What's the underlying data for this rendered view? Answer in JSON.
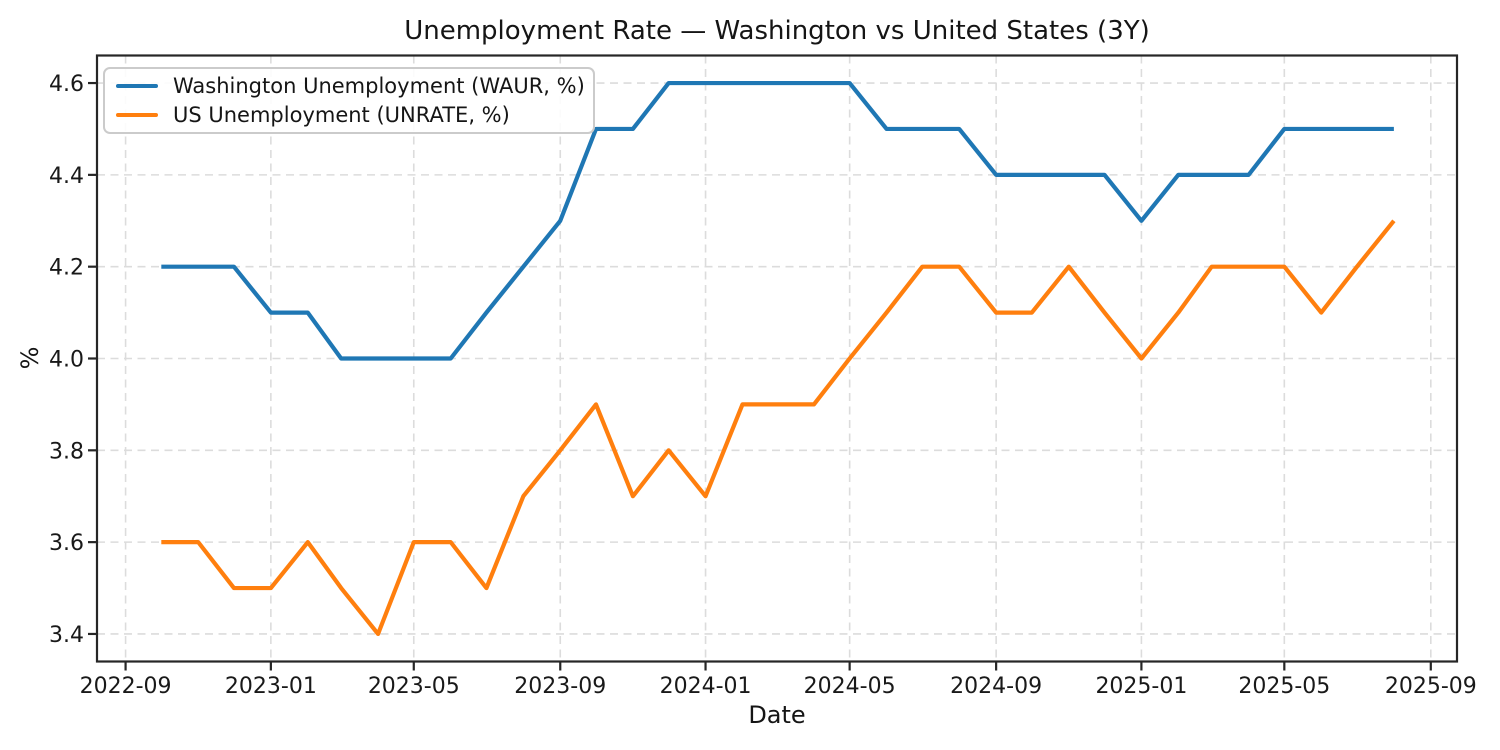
{
  "chart_data": {
    "type": "line",
    "title": "Unemployment Rate — Washington vs United States (3Y)",
    "xlabel": "Date",
    "ylabel": "%",
    "grid": true,
    "legend_position": "upper left",
    "x": [
      "2022-10",
      "2022-11",
      "2022-12",
      "2023-01",
      "2023-02",
      "2023-03",
      "2023-04",
      "2023-05",
      "2023-06",
      "2023-07",
      "2023-08",
      "2023-09",
      "2023-10",
      "2023-11",
      "2023-12",
      "2024-01",
      "2024-02",
      "2024-03",
      "2024-04",
      "2024-05",
      "2024-06",
      "2024-07",
      "2024-08",
      "2024-09",
      "2024-10",
      "2024-11",
      "2024-12",
      "2025-01",
      "2025-02",
      "2025-03",
      "2025-04",
      "2025-05",
      "2025-06",
      "2025-07",
      "2025-08"
    ],
    "series": [
      {
        "name": "Washington Unemployment (WAUR, %)",
        "color": "#1f77b4",
        "values": [
          4.2,
          4.2,
          4.2,
          4.1,
          4.1,
          4.0,
          4.0,
          4.0,
          4.0,
          4.1,
          4.2,
          4.3,
          4.5,
          4.5,
          4.6,
          4.6,
          4.6,
          4.6,
          4.6,
          4.6,
          4.5,
          4.5,
          4.5,
          4.4,
          4.4,
          4.4,
          4.4,
          4.3,
          4.4,
          4.4,
          4.4,
          4.5,
          4.5,
          4.5,
          4.5
        ]
      },
      {
        "name": "US Unemployment (UNRATE, %)",
        "color": "#ff7f0e",
        "values": [
          3.6,
          3.6,
          3.5,
          3.5,
          3.6,
          3.5,
          3.4,
          3.6,
          3.6,
          3.5,
          3.7,
          3.8,
          3.9,
          3.7,
          3.8,
          3.7,
          3.9,
          3.9,
          3.9,
          4.0,
          4.1,
          4.2,
          4.2,
          4.1,
          4.1,
          4.2,
          4.1,
          4.0,
          4.1,
          4.2,
          4.2,
          4.2,
          4.1,
          4.2,
          4.3
        ]
      }
    ],
    "x_tick_labels": [
      "2022-09",
      "2023-01",
      "2023-05",
      "2023-09",
      "2024-01",
      "2024-05",
      "2024-09",
      "2025-01",
      "2025-05",
      "2025-09"
    ],
    "y_tick_labels": [
      "3.4",
      "3.6",
      "3.8",
      "4.0",
      "4.2",
      "4.4",
      "4.6"
    ],
    "xlim": [
      "2022-08-08",
      "2025-09-23"
    ],
    "ylim": [
      3.34,
      4.66
    ],
    "axis_color": "#262626",
    "grid_color": "#dcdcdc",
    "text_color": "#191919"
  }
}
